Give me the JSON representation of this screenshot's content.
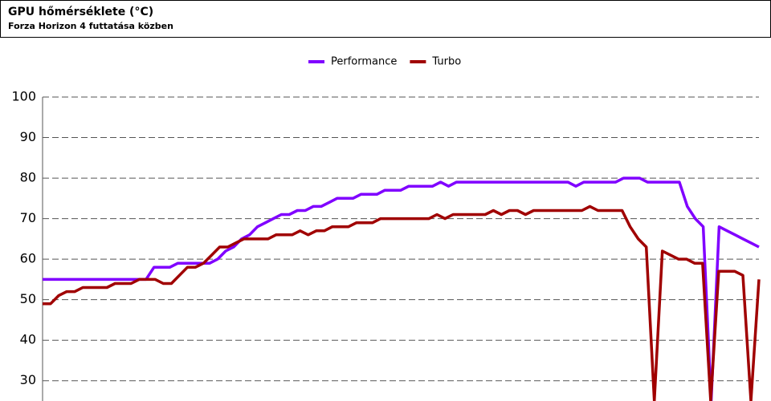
{
  "chart_data": {
    "type": "line",
    "title": "GPU hőmérséklete (°C)",
    "subtitle": "Forza Horizon 4 futtatása közben",
    "ylim": [
      25,
      100
    ],
    "yticks": [
      30,
      40,
      50,
      60,
      70,
      80,
      90,
      100
    ],
    "grid": true,
    "legend": "top",
    "series": [
      {
        "name": "Performance",
        "color": "#8000ff",
        "values": [
          55,
          55,
          55,
          55,
          55,
          55,
          55,
          55,
          55,
          55,
          55,
          55,
          55,
          55,
          58,
          58,
          58,
          59,
          59,
          59,
          59,
          59,
          60,
          62,
          63,
          65,
          66,
          68,
          69,
          70,
          71,
          71,
          72,
          72,
          73,
          73,
          74,
          75,
          75,
          75,
          76,
          76,
          76,
          77,
          77,
          77,
          78,
          78,
          78,
          78,
          79,
          78,
          79,
          79,
          79,
          79,
          79,
          79,
          79,
          79,
          79,
          79,
          79,
          79,
          79,
          79,
          79,
          78,
          79,
          79,
          79,
          79,
          79,
          80,
          80,
          80,
          79,
          79,
          79,
          79,
          79,
          73,
          70,
          68,
          25,
          68,
          67,
          66,
          65,
          64,
          63
        ]
      },
      {
        "name": "Turbo",
        "color": "#a00000",
        "values": [
          49,
          49,
          51,
          52,
          52,
          53,
          53,
          53,
          53,
          54,
          54,
          54,
          55,
          55,
          55,
          54,
          54,
          56,
          58,
          58,
          59,
          61,
          63,
          63,
          64,
          65,
          65,
          65,
          65,
          66,
          66,
          66,
          67,
          66,
          67,
          67,
          68,
          68,
          68,
          69,
          69,
          69,
          70,
          70,
          70,
          70,
          70,
          70,
          70,
          71,
          70,
          71,
          71,
          71,
          71,
          71,
          72,
          71,
          72,
          72,
          71,
          72,
          72,
          72,
          72,
          72,
          72,
          72,
          73,
          72,
          72,
          72,
          72,
          68,
          65,
          63,
          25,
          62,
          61,
          60,
          60,
          59,
          59,
          25,
          57,
          57,
          57,
          56,
          25,
          55
        ]
      }
    ]
  }
}
